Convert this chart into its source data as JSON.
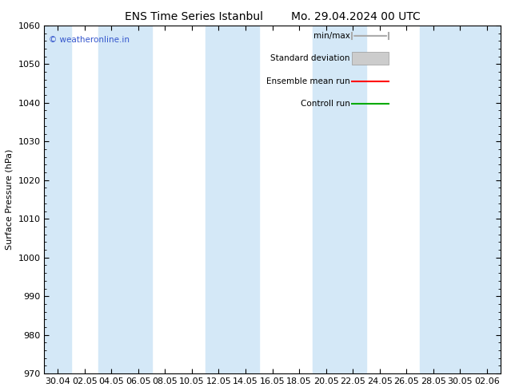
{
  "title_left": "ENS Time Series Istanbul",
  "title_right": "Mo. 29.04.2024 00 UTC",
  "ylabel": "Surface Pressure (hPa)",
  "ylim": [
    970,
    1060
  ],
  "yticks": [
    970,
    980,
    990,
    1000,
    1010,
    1020,
    1030,
    1040,
    1050,
    1060
  ],
  "xtick_labels": [
    "30.04",
    "02.05",
    "04.05",
    "06.05",
    "08.05",
    "10.05",
    "12.05",
    "14.05",
    "16.05",
    "18.05",
    "20.05",
    "22.05",
    "24.05",
    "26.05",
    "28.05",
    "30.05",
    "02.06"
  ],
  "background_color": "#ffffff",
  "plot_bg_color": "#ffffff",
  "band_color": "#d4e8f7",
  "watermark": "© weatheronline.in",
  "watermark_color": "#3355cc",
  "title_fontsize": 10,
  "axis_fontsize": 8,
  "tick_fontsize": 8,
  "legend_fontsize": 7.5,
  "minmax_color": "#aaaaaa",
  "stddev_color": "#cccccc",
  "stddev_edge": "#999999",
  "ensemble_color": "#ff0000",
  "control_color": "#00aa00"
}
